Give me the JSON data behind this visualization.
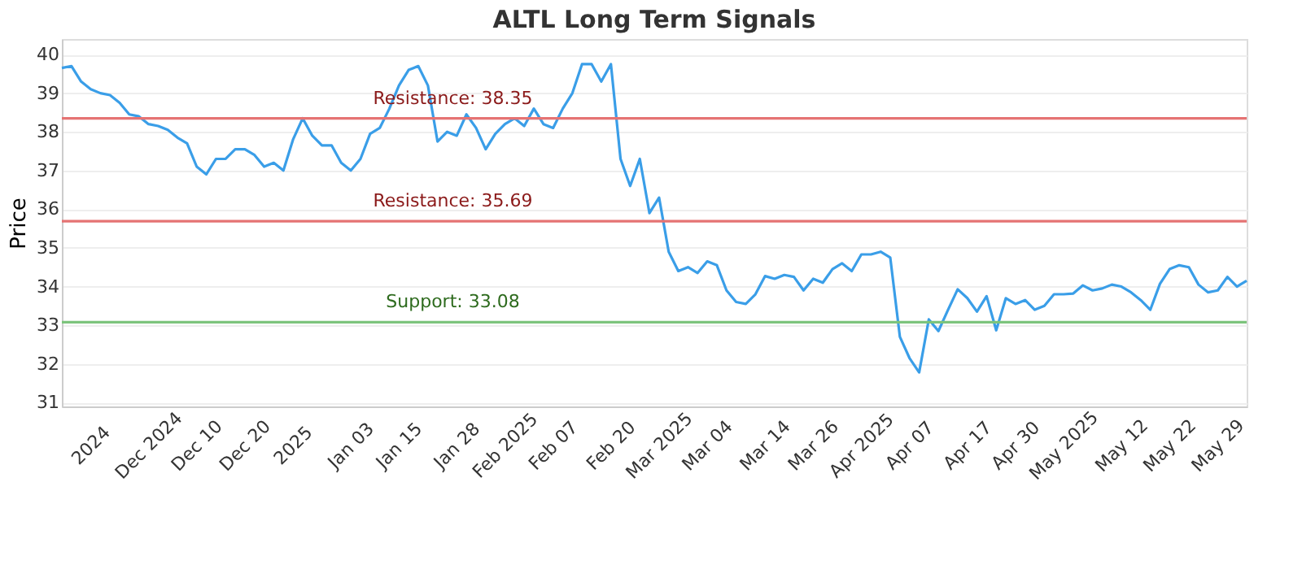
{
  "chart_data": {
    "type": "line",
    "title": "ALTL Long Term Signals",
    "ylabel": "Price",
    "categories": [
      null,
      null,
      null,
      "2024",
      null,
      null,
      null,
      null,
      null,
      "Dec 2024",
      null,
      null,
      null,
      null,
      "Dec 10",
      null,
      null,
      null,
      null,
      "Dec 20",
      null,
      null,
      null,
      null,
      "2025",
      null,
      null,
      null,
      null,
      null,
      "Jan 03",
      null,
      null,
      null,
      null,
      "Jan 15",
      null,
      null,
      null,
      null,
      null,
      "Jan 28",
      null,
      null,
      null,
      null,
      "Feb 2025",
      null,
      null,
      null,
      null,
      "Feb 07",
      null,
      null,
      null,
      null,
      null,
      "Feb 20",
      null,
      null,
      null,
      null,
      "Mar 2025",
      null,
      null,
      null,
      null,
      "Mar 04",
      null,
      null,
      null,
      null,
      null,
      "Mar 14",
      null,
      null,
      null,
      null,
      "Mar 26",
      null,
      null,
      null,
      null,
      "Apr 2025",
      null,
      null,
      null,
      null,
      "Apr 07",
      null,
      null,
      null,
      null,
      null,
      "Apr 17",
      null,
      null,
      null,
      null,
      "Apr 30",
      null,
      null,
      null,
      null,
      "May 2025",
      null,
      null,
      null,
      null,
      null,
      "May 12",
      null,
      null,
      null,
      null,
      "May 22",
      null,
      null,
      null,
      null,
      "May 29",
      null,
      null,
      null
    ],
    "series": [
      {
        "color": "#3a9ee8",
        "values": [
          39.65,
          39.7,
          39.3,
          39.1,
          39.0,
          38.95,
          38.75,
          38.45,
          38.4,
          38.2,
          38.15,
          38.05,
          37.85,
          37.7,
          37.1,
          36.9,
          37.3,
          37.3,
          37.55,
          37.55,
          37.4,
          37.1,
          37.2,
          37.0,
          37.8,
          38.35,
          37.9,
          37.65,
          37.65,
          37.2,
          37.0,
          37.3,
          37.95,
          38.1,
          38.6,
          39.2,
          39.6,
          39.7,
          39.2,
          37.75,
          38.0,
          37.9,
          38.45,
          38.1,
          37.55,
          37.95,
          38.2,
          38.35,
          38.15,
          38.6,
          38.2,
          38.1,
          38.6,
          39.0,
          39.75,
          39.75,
          39.3,
          39.75,
          37.3,
          36.6,
          37.3,
          35.9,
          36.3,
          34.9,
          34.4,
          34.5,
          34.35,
          34.65,
          34.55,
          33.9,
          33.6,
          33.55,
          33.8,
          34.27,
          34.2,
          34.3,
          34.25,
          33.9,
          34.2,
          34.1,
          34.45,
          34.6,
          34.4,
          34.83,
          34.83,
          34.9,
          34.75,
          32.7,
          32.15,
          31.78,
          33.15,
          32.85,
          33.4,
          33.93,
          33.7,
          33.35,
          33.75,
          32.87,
          33.7,
          33.55,
          33.65,
          33.4,
          33.5,
          33.8,
          33.8,
          33.82,
          34.03,
          33.9,
          33.95,
          34.05,
          34.0,
          33.85,
          33.65,
          33.4,
          34.07,
          34.45,
          34.55,
          34.5,
          34.05,
          33.85,
          33.9,
          34.25,
          34.0,
          34.15
        ]
      }
    ],
    "ylim": [
      30.9,
      40.4
    ],
    "yticks": [
      31,
      32,
      33,
      34,
      35,
      36,
      37,
      38,
      39,
      40
    ],
    "grid": "y",
    "ref_lines": [
      {
        "axis": "y",
        "value": 38.35,
        "label": "Resistance: 38.35",
        "color": "#e57373"
      },
      {
        "axis": "y",
        "value": 35.69,
        "label": "Resistance: 35.69",
        "color": "#e57373"
      },
      {
        "axis": "y",
        "value": 33.08,
        "label": "Support: 33.08",
        "color": "#7cc47c"
      }
    ]
  }
}
